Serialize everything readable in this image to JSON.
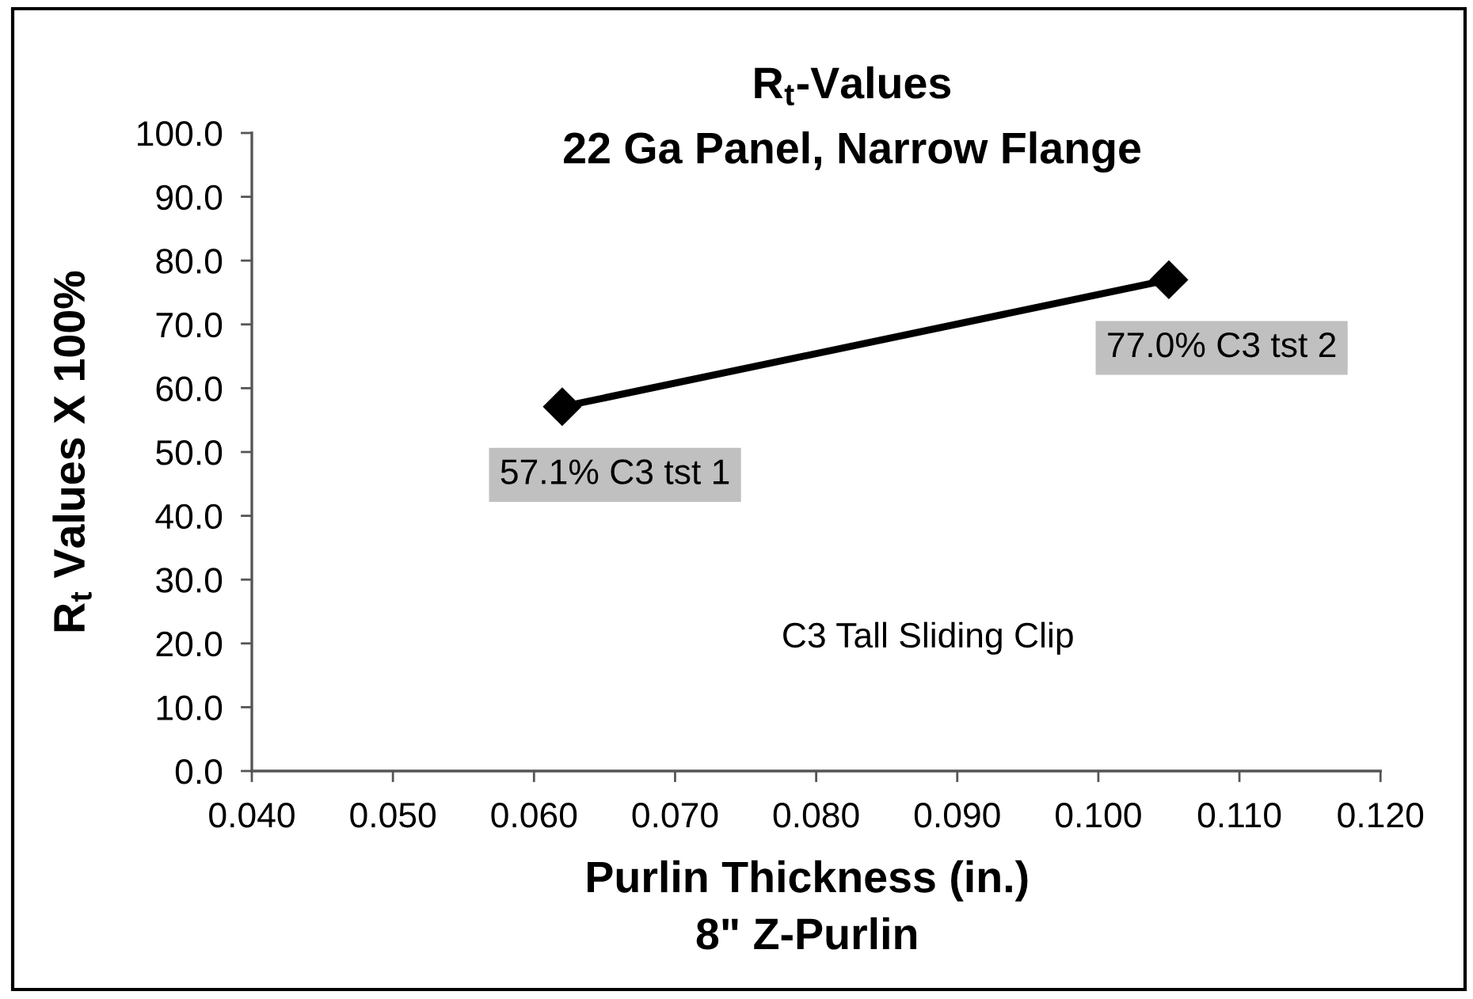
{
  "chart_data": {
    "type": "line",
    "title": "R$_{t}$-Values",
    "subtitle": "22 Ga Panel, Narrow Flange",
    "xlabel": "Purlin Thickness (in.)\n8\" Z-Purlin",
    "ylabel": "R$_{t}$ Values X 100%",
    "annotations": [
      "C3 Tall Sliding Clip"
    ],
    "x": [
      0.062,
      0.105
    ],
    "series": [
      {
        "color": "#000000",
        "values": [
          57.1,
          77.0
        ],
        "value_labels": [
          "57.1% C3 tst 1",
          "77.0% C3 tst 2"
        ]
      }
    ],
    "marker": "diamond",
    "line_style": "solid",
    "xlim": [
      0.04,
      0.12
    ],
    "xticks": [
      {
        "value": 0.04,
        "label": "0.040"
      },
      {
        "value": 0.05,
        "label": "0.050"
      },
      {
        "value": 0.06,
        "label": "0.060"
      },
      {
        "value": 0.07,
        "label": "0.070"
      },
      {
        "value": 0.08,
        "label": "0.080"
      },
      {
        "value": 0.09,
        "label": "0.090"
      },
      {
        "value": 0.1,
        "label": "0.100"
      },
      {
        "value": 0.11,
        "label": "0.110"
      },
      {
        "value": 0.12,
        "label": "0.120"
      }
    ],
    "ylim": [
      0,
      100
    ],
    "yticks": [
      {
        "value": 0,
        "label": "0.0"
      },
      {
        "value": 10,
        "label": "10.0"
      },
      {
        "value": 20,
        "label": "20.0"
      },
      {
        "value": 30,
        "label": "30.0"
      },
      {
        "value": 40,
        "label": "40.0"
      },
      {
        "value": 50,
        "label": "50.0"
      },
      {
        "value": 60,
        "label": "60.0"
      },
      {
        "value": 70,
        "label": "70.0"
      },
      {
        "value": 80,
        "label": "80.0"
      },
      {
        "value": 90,
        "label": "90.0"
      },
      {
        "value": 100,
        "label": "100.0"
      }
    ]
  }
}
